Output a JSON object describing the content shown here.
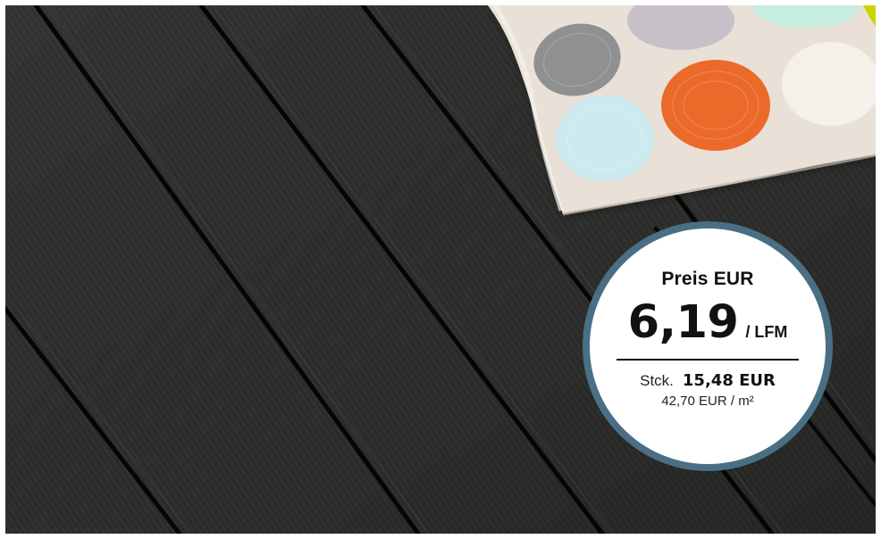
{
  "badge": {
    "title": "Preis EUR",
    "price": "6,19",
    "unit": "/ LFM",
    "stck_label": "Stck.",
    "stck_value": "15,48 EUR",
    "per_sqm": "42,70 EUR / m²",
    "ring_color": "#4a6f85"
  },
  "colors": {
    "decking": "#2f302d",
    "cushion": "#e9e1d8",
    "dot_orange": "#eb6a2b",
    "dot_gray": "#8f9092",
    "dot_lilac": "#c8c0c8",
    "dot_cyan": "#cdebef",
    "dot_white": "#f4f1ea",
    "accent_yellow": "#c9d400"
  }
}
